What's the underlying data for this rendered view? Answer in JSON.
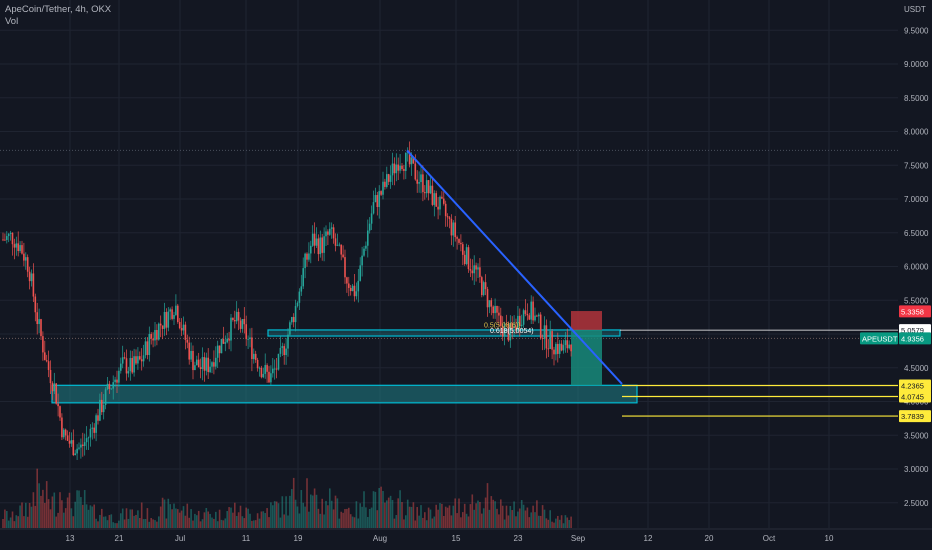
{
  "header": {
    "symbol_line": "ApeCoin/Tether, 4h, OKX",
    "indicator": "Vol"
  },
  "colors": {
    "background": "#131722",
    "grid": "#1f2431",
    "up": "#26a69a",
    "down": "#ef5350",
    "trendline": "#2962ff",
    "zone_fill": "#1f7f86",
    "zone_border": "#00bcd4",
    "level_line": "#ffeb3b",
    "stop_box": "#a8323a",
    "target_box": "#178a7a",
    "axis_text": "#b2b5be"
  },
  "chart_data": {
    "type": "candlestick",
    "symbol": "APEUSDT",
    "interval": "4h",
    "exchange": "OKX",
    "currency_label": "USDT",
    "yaxis_ticks": [
      "9.5000",
      "9.0000",
      "8.5000",
      "8.0000",
      "7.5000",
      "7.0000",
      "6.5000",
      "6.0000",
      "5.5000",
      "5.0000",
      "4.5000",
      "4.0000",
      "3.5000",
      "3.0000",
      "2.5000"
    ],
    "yaxis_tick_values": [
      9.5,
      9.0,
      8.5,
      8.0,
      7.5,
      7.0,
      6.5,
      6.0,
      5.5,
      5.0,
      4.5,
      4.0,
      3.5,
      3.0,
      2.5
    ],
    "xaxis_ticks": [
      "13",
      "21",
      "Jul",
      "11",
      "19",
      "Aug",
      "15",
      "23",
      "Sep",
      "12",
      "20",
      "Oct",
      "10"
    ],
    "price_path": [
      6.4,
      6.45,
      6.3,
      6.0,
      5.2,
      4.6,
      4.2,
      3.5,
      3.35,
      3.3,
      3.5,
      3.8,
      4.1,
      4.35,
      4.55,
      4.5,
      4.6,
      4.9,
      5.1,
      5.25,
      5.45,
      5.0,
      4.6,
      4.5,
      4.55,
      4.8,
      5.0,
      5.2,
      5.05,
      4.75,
      4.5,
      4.35,
      4.55,
      4.95,
      5.4,
      6.0,
      6.4,
      6.3,
      6.5,
      6.2,
      5.8,
      5.6,
      6.3,
      6.9,
      7.1,
      7.35,
      7.6,
      7.55,
      7.35,
      7.2,
      7.0,
      6.85,
      6.6,
      6.35,
      6.1,
      5.9,
      5.6,
      5.3,
      5.1,
      5.0,
      5.25,
      5.4,
      5.2,
      4.95,
      4.85,
      4.75,
      4.9
    ],
    "volumes": [
      0.3,
      0.25,
      0.4,
      0.5,
      0.9,
      0.7,
      0.6,
      0.85,
      0.55,
      0.6,
      0.4,
      0.35,
      0.3,
      0.25,
      0.3,
      0.35,
      0.4,
      0.3,
      0.35,
      0.45,
      0.55,
      0.4,
      0.35,
      0.3,
      0.35,
      0.3,
      0.4,
      0.45,
      0.35,
      0.3,
      0.35,
      0.45,
      0.5,
      0.55,
      0.8,
      1.0,
      0.6,
      0.55,
      0.7,
      0.5,
      0.45,
      0.4,
      0.6,
      0.75,
      0.65,
      0.5,
      0.6,
      0.45,
      0.4,
      0.35,
      0.45,
      0.4,
      0.4,
      0.5,
      0.55,
      0.6,
      0.7,
      0.5,
      0.45,
      0.4,
      0.5,
      0.55,
      0.45,
      0.35,
      0.3,
      0.25,
      0.2
    ],
    "trendline": {
      "from_price": 7.72,
      "to_price": 4.26
    },
    "peak_level": 7.72,
    "supply_zone": {
      "top": 5.06,
      "bottom": 4.97
    },
    "demand_zone": {
      "top": 4.24,
      "bottom": 3.98
    },
    "price_labels": [
      {
        "label": "5.3358",
        "value": 5.3358,
        "color": "#f23645",
        "text_color": "#ffffff"
      },
      {
        "label": "5.0579",
        "value": 5.0579,
        "color": "#ffffff",
        "text_color": "#131722"
      },
      {
        "label": "APEUSDT",
        "value": 4.9356,
        "color": "#089981",
        "text_color": "#ffffff",
        "symbol": true
      },
      {
        "label": "4.9356",
        "value": 4.9356,
        "color": "#089981",
        "text_color": "#ffffff"
      },
      {
        "label": "4.2365",
        "value": 4.2365,
        "color": "#ffeb3b",
        "text_color": "#131722"
      },
      {
        "label": "4.0745",
        "value": 4.0745,
        "color": "#ffeb3b",
        "text_color": "#131722"
      },
      {
        "label": "3.7839",
        "value": 3.7839,
        "color": "#ffeb3b",
        "text_color": "#131722"
      }
    ],
    "position": {
      "entry": 5.06,
      "stop": 5.34,
      "target": 4.24
    },
    "fib_annotation_1": "0.5(5.08(6))",
    "fib_annotation_2": "0.618(5.0054)"
  }
}
